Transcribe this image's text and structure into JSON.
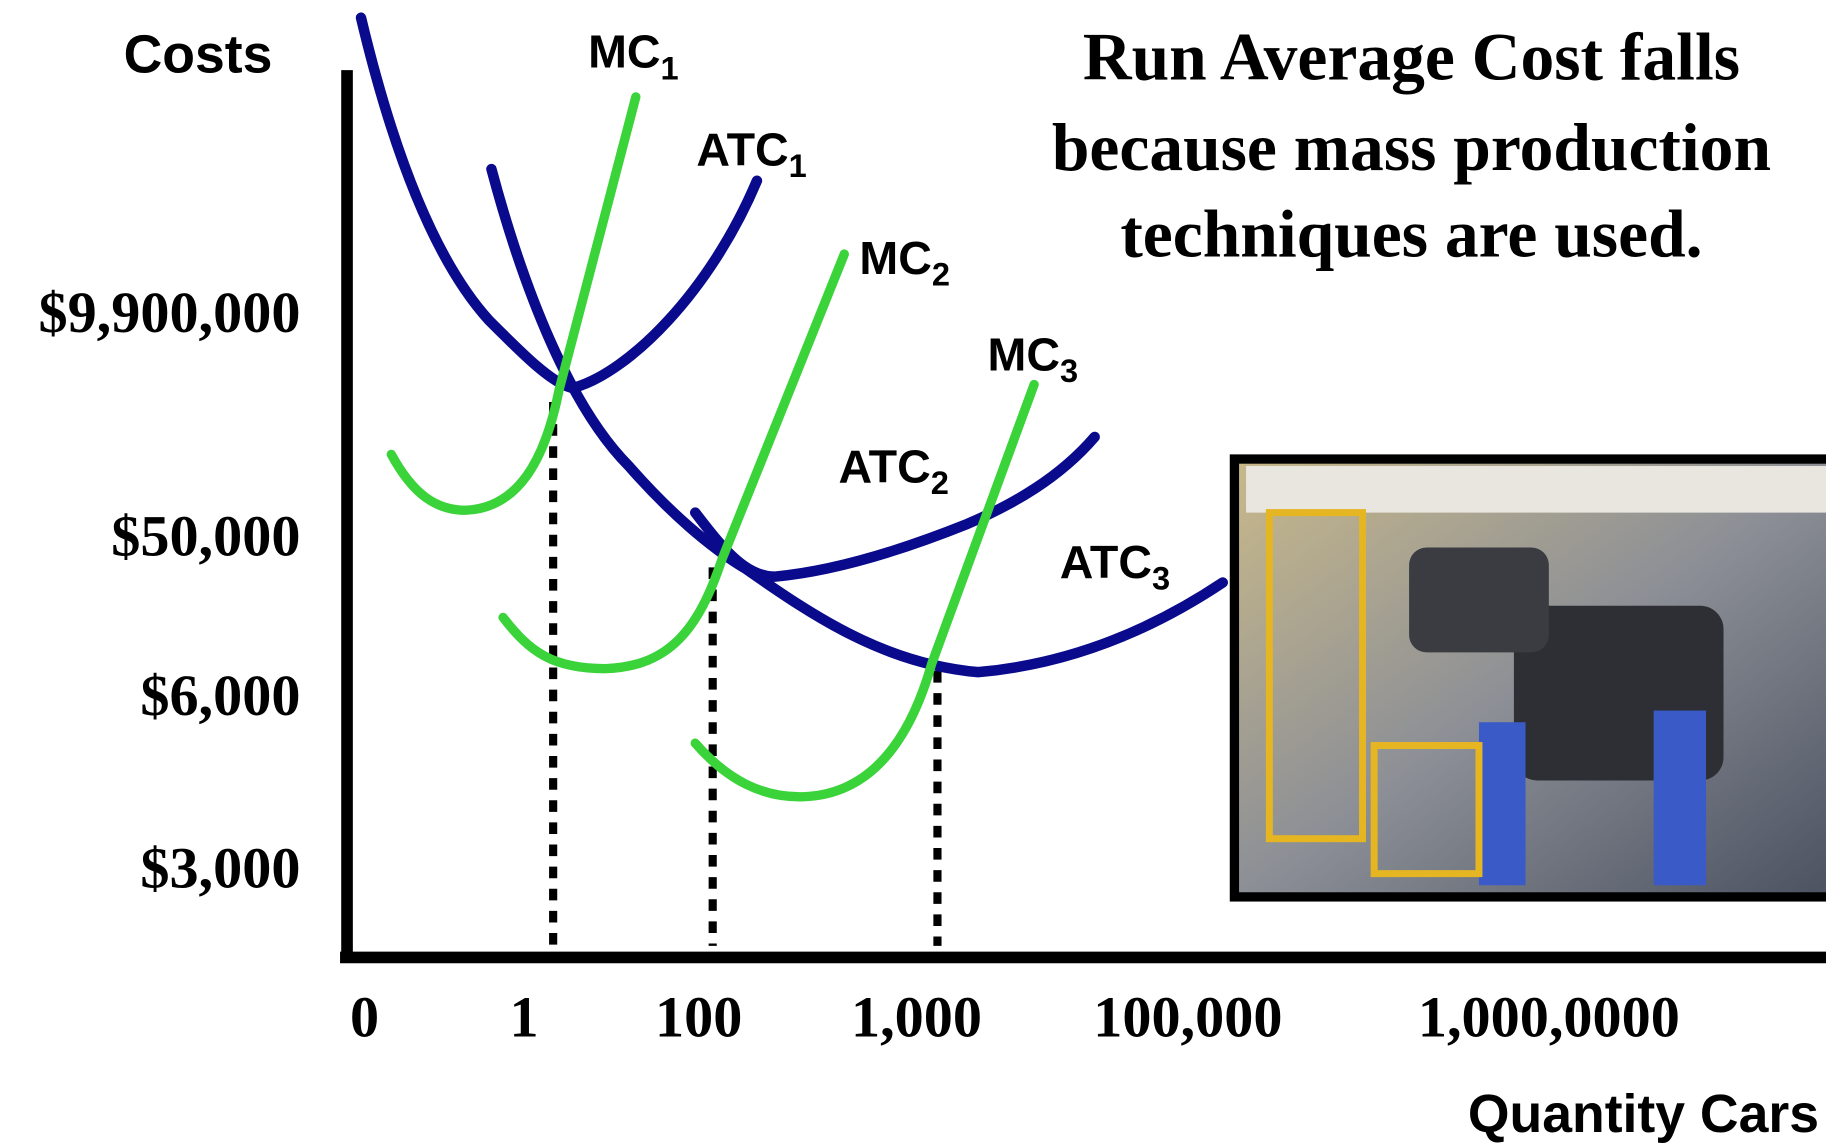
{
  "axes": {
    "y_label": "Costs",
    "x_label": "Quantity Cars",
    "y_ticks": [
      "$9,900,000",
      "$50,000",
      "$6,000",
      "$3,000"
    ],
    "x_ticks": [
      "0",
      "1",
      "100",
      "1,000",
      "100,000",
      "1,000,0000"
    ]
  },
  "curves": [
    {
      "name": "MC",
      "sub": "1"
    },
    {
      "name": "ATC",
      "sub": "1"
    },
    {
      "name": "MC",
      "sub": "2"
    },
    {
      "name": "MC",
      "sub": "3"
    },
    {
      "name": "ATC",
      "sub": "2"
    },
    {
      "name": "ATC",
      "sub": "3"
    }
  ],
  "caption": {
    "lines": [
      "Run Average Cost falls",
      "because mass production",
      "techniques are used."
    ]
  }
}
